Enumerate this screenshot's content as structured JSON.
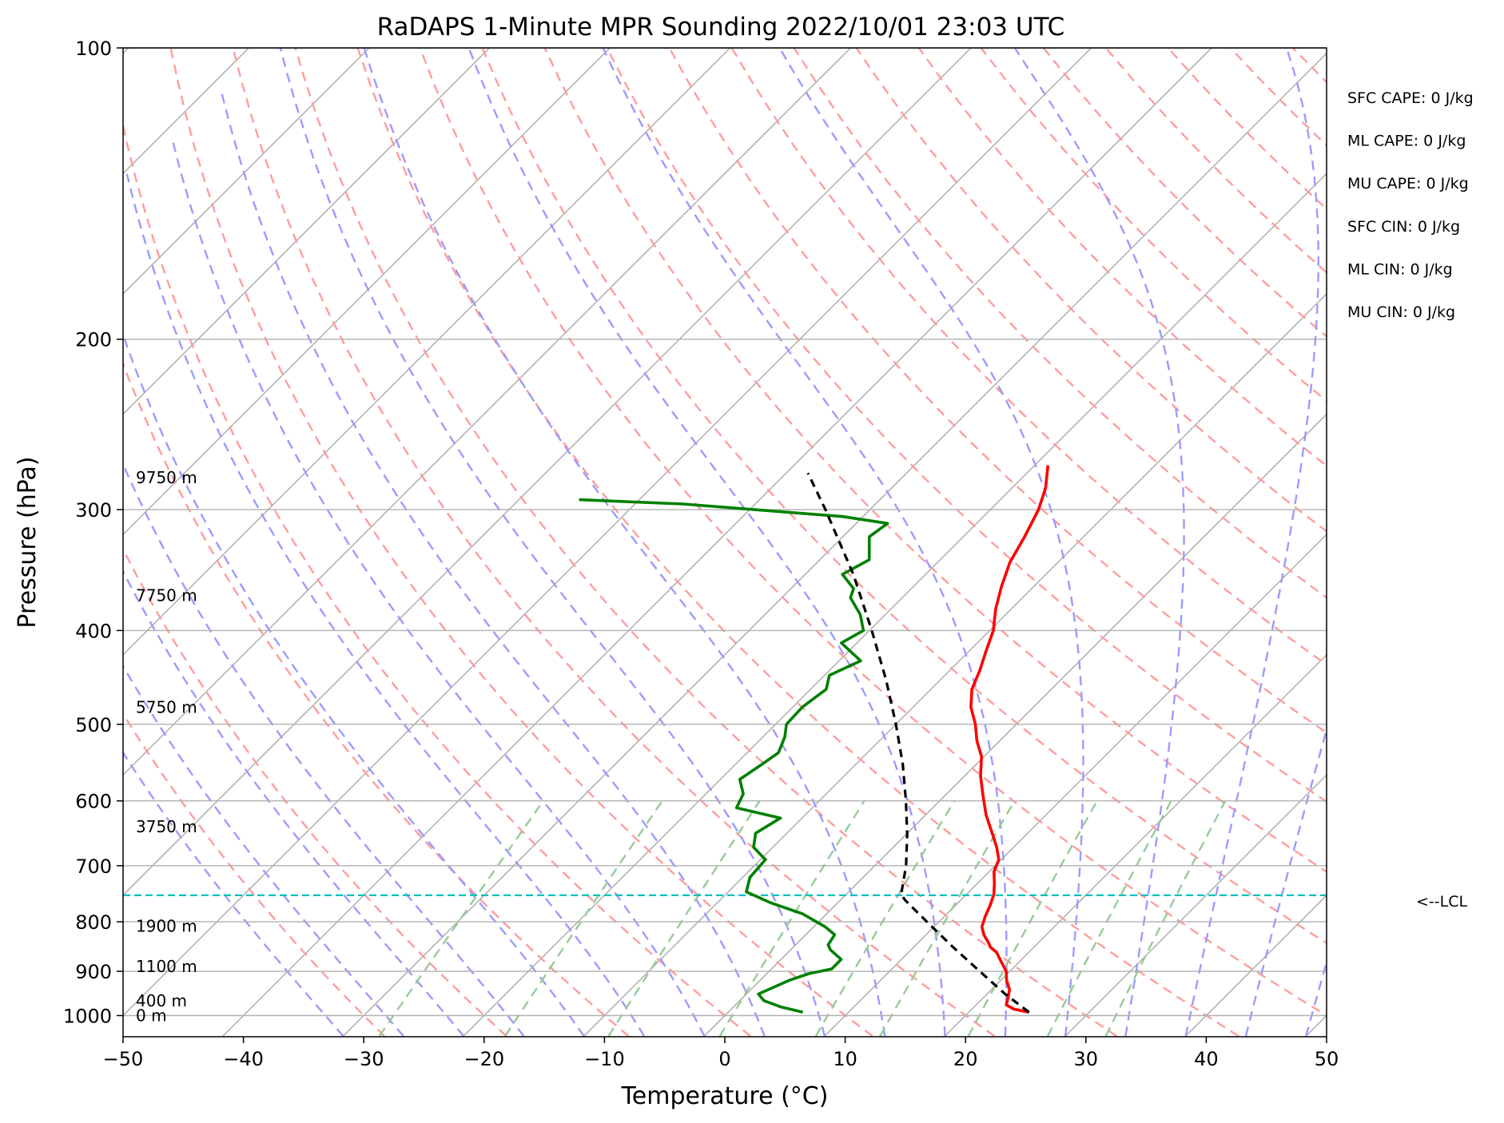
{
  "chart_data": {
    "type": "line",
    "title": "RaDAPS 1-Minute MPR Sounding 2022/10/01 23:03 UTC",
    "xlabel": "Temperature (°C)",
    "ylabel": "Pressure (hPa)",
    "xlim": [
      -50,
      50
    ],
    "ylim": [
      1050,
      100
    ],
    "y_scale": "log",
    "x_ticks": [
      -50,
      -40,
      -30,
      -20,
      -10,
      0,
      10,
      20,
      30,
      40,
      50
    ],
    "x_tick_labels": [
      "−50",
      "−40",
      "−30",
      "−20",
      "−10",
      "0",
      "10",
      "20",
      "30",
      "40",
      "50"
    ],
    "y_ticks": [
      100,
      200,
      300,
      400,
      500,
      600,
      700,
      800,
      900,
      1000
    ],
    "y_tick_labels": [
      "100",
      "200",
      "300",
      "400",
      "500",
      "600",
      "700",
      "800",
      "900",
      "1000"
    ],
    "grid": true,
    "skew": "skew-T",
    "background_lines": [
      "isotherms",
      "dry adiabats",
      "moist adiabats",
      "mixing ratio lines"
    ],
    "series": [
      {
        "role": "temperature",
        "color": "#ff0000",
        "points": [
          [
            992,
            25.0
          ],
          [
            985,
            23.5
          ],
          [
            975,
            22.5
          ],
          [
            960,
            22.1
          ],
          [
            940,
            21.5
          ],
          [
            920,
            20.5
          ],
          [
            900,
            19.7
          ],
          [
            880,
            18.5
          ],
          [
            860,
            17.3
          ],
          [
            850,
            16.4
          ],
          [
            840,
            15.8
          ],
          [
            825,
            14.8
          ],
          [
            810,
            14.0
          ],
          [
            790,
            13.4
          ],
          [
            770,
            12.9
          ],
          [
            750,
            12.3
          ],
          [
            730,
            11.4
          ],
          [
            710,
            10.4
          ],
          [
            690,
            9.8
          ],
          [
            670,
            8.6
          ],
          [
            650,
            7.2
          ],
          [
            620,
            5.0
          ],
          [
            590,
            3.0
          ],
          [
            565,
            1.3
          ],
          [
            540,
            -0.2
          ],
          [
            520,
            -1.9
          ],
          [
            500,
            -3.4
          ],
          [
            480,
            -5.2
          ],
          [
            460,
            -6.6
          ],
          [
            440,
            -7.5
          ],
          [
            420,
            -8.6
          ],
          [
            400,
            -9.7
          ],
          [
            380,
            -11.3
          ],
          [
            360,
            -12.7
          ],
          [
            340,
            -14.0
          ],
          [
            320,
            -14.9
          ],
          [
            300,
            -16.0
          ],
          [
            285,
            -17.2
          ],
          [
            270,
            -18.9
          ]
        ]
      },
      {
        "role": "dewpoint",
        "color": "#008000",
        "points": [
          [
            992,
            6.2
          ],
          [
            980,
            4.0
          ],
          [
            965,
            2.0
          ],
          [
            950,
            1.0
          ],
          [
            935,
            1.7
          ],
          [
            920,
            2.4
          ],
          [
            905,
            3.5
          ],
          [
            895,
            5.0
          ],
          [
            875,
            5.0
          ],
          [
            855,
            3.3
          ],
          [
            845,
            2.7
          ],
          [
            825,
            2.4
          ],
          [
            810,
            1.0
          ],
          [
            785,
            -2.0
          ],
          [
            765,
            -5.5
          ],
          [
            745,
            -8.5
          ],
          [
            720,
            -9.4
          ],
          [
            690,
            -9.6
          ],
          [
            670,
            -11.6
          ],
          [
            648,
            -12.6
          ],
          [
            625,
            -11.8
          ],
          [
            610,
            -16.3
          ],
          [
            590,
            -16.9
          ],
          [
            570,
            -18.4
          ],
          [
            550,
            -17.8
          ],
          [
            535,
            -17.4
          ],
          [
            515,
            -18.2
          ],
          [
            500,
            -19.1
          ],
          [
            480,
            -19.2
          ],
          [
            460,
            -18.7
          ],
          [
            445,
            -19.6
          ],
          [
            430,
            -18.2
          ],
          [
            412,
            -21.3
          ],
          [
            400,
            -20.5
          ],
          [
            385,
            -22.1
          ],
          [
            370,
            -24.3
          ],
          [
            362,
            -24.8
          ],
          [
            350,
            -26.9
          ],
          [
            338,
            -25.9
          ],
          [
            320,
            -27.8
          ],
          [
            310,
            -27.4
          ],
          [
            305,
            -31.7
          ],
          [
            296,
            -46.0
          ],
          [
            293,
            -55.0
          ]
        ]
      },
      {
        "role": "parcel profile",
        "color": "#000000",
        "dashed": true,
        "points": [
          [
            992,
            25.0
          ],
          [
            950,
            21.5
          ],
          [
            900,
            17.5
          ],
          [
            850,
            13.3
          ],
          [
            800,
            9.0
          ],
          [
            760,
            5.4
          ],
          [
            750,
            4.6
          ],
          [
            700,
            2.6
          ],
          [
            650,
            0.1
          ],
          [
            600,
            -2.8
          ],
          [
            550,
            -6.1
          ],
          [
            500,
            -10.0
          ],
          [
            450,
            -14.5
          ],
          [
            400,
            -19.8
          ],
          [
            350,
            -26.0
          ],
          [
            300,
            -33.7
          ],
          [
            275,
            -38.2
          ]
        ]
      }
    ],
    "lcl_pressure": 751,
    "lcl_label": "<--LCL",
    "height_labels": [
      {
        "label": "0 m",
        "p": 1000
      },
      {
        "label": "400 m",
        "p": 965
      },
      {
        "label": "1100 m",
        "p": 890
      },
      {
        "label": "1900 m",
        "p": 808
      },
      {
        "label": "3750 m",
        "p": 638
      },
      {
        "label": "5750 m",
        "p": 480
      },
      {
        "label": "7750 m",
        "p": 368
      },
      {
        "label": "9750 m",
        "p": 278
      }
    ],
    "stats": [
      "SFC CAPE: 0 J/kg",
      "ML CAPE: 0 J/kg",
      "MU CAPE: 0 J/kg",
      "SFC CIN: 0 J/kg",
      "ML CIN: 0 J/kg",
      "MU CIN: 0 J/kg"
    ],
    "colors": {
      "isotherm": "#aaaaaa",
      "dry_adiabat": "#ff9d9d",
      "moist_adiabat": "#9b9bff",
      "mixing_ratio": "#96cb96",
      "lcl": "#00c0c0",
      "grid": "#b0b0b0"
    }
  }
}
